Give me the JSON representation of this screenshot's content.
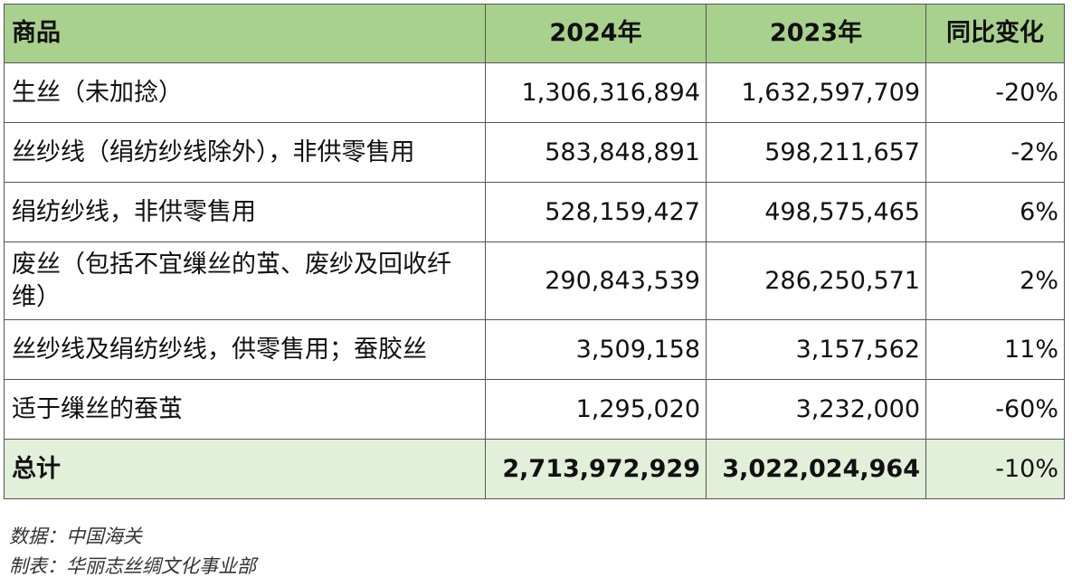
{
  "table": {
    "headers": [
      "商品",
      "2024年",
      "2023年",
      "同比变化"
    ],
    "rows": [
      {
        "product": "生丝（未加捻）",
        "y2024": "1,306,316,894",
        "y2023": "1,632,597,709",
        "change": "-20%"
      },
      {
        "product": "丝纱线（绢纺纱线除外），非供零售用",
        "y2024": "583,848,891",
        "y2023": "598,211,657",
        "change": "-2%"
      },
      {
        "product": "绢纺纱线，非供零售用",
        "y2024": "528,159,427",
        "y2023": "498,575,465",
        "change": "6%"
      },
      {
        "product": "废丝（包括不宜缫丝的茧、废纱及回收纤维）",
        "y2024": "290,843,539",
        "y2023": "286,250,571",
        "change": "2%"
      },
      {
        "product": "丝纱线及绢纺纱线，供零售用；蚕胶丝",
        "y2024": "3,509,158",
        "y2023": "3,157,562",
        "change": "11%"
      },
      {
        "product": "适于缫丝的蚕茧",
        "y2024": "1,295,020",
        "y2023": "3,232,000",
        "change": "-60%"
      }
    ],
    "total": {
      "product": "总计",
      "y2024": "2,713,972,929",
      "y2023": "3,022,024,964",
      "change": "-10%"
    }
  },
  "notes": {
    "source": "数据：中国海关",
    "made_by": "制表：华丽志丝绸文化事业部"
  },
  "colors": {
    "header_bg": "#a9d18e",
    "total_bg": "#e2efd9",
    "border": "#555555"
  }
}
